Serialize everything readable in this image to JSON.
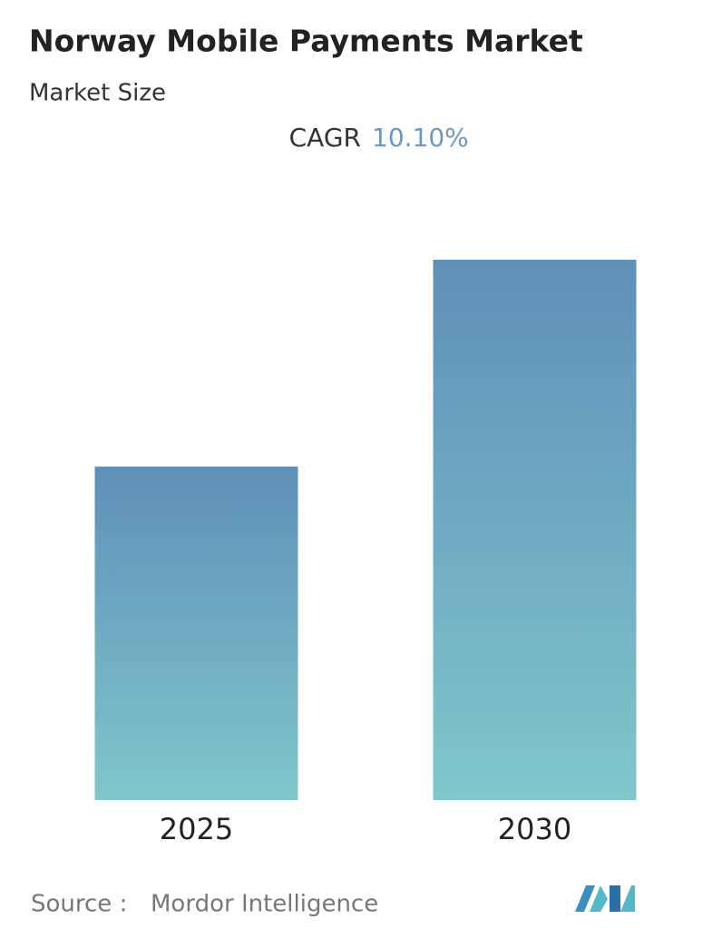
{
  "chart_data": {
    "type": "bar",
    "title": "Norway Mobile Payments Market",
    "subtitle": "Market Size",
    "cagr_label": "CAGR",
    "cagr_value": "10.10%",
    "categories": [
      "2025",
      "2030"
    ],
    "values": [
      1,
      1.62
    ],
    "color_top": "#5f90b8",
    "color_bottom": "#80c6cb",
    "ylim": [
      0,
      1.62
    ],
    "source_label": "Source :",
    "source": "Mordor Intelligence"
  }
}
